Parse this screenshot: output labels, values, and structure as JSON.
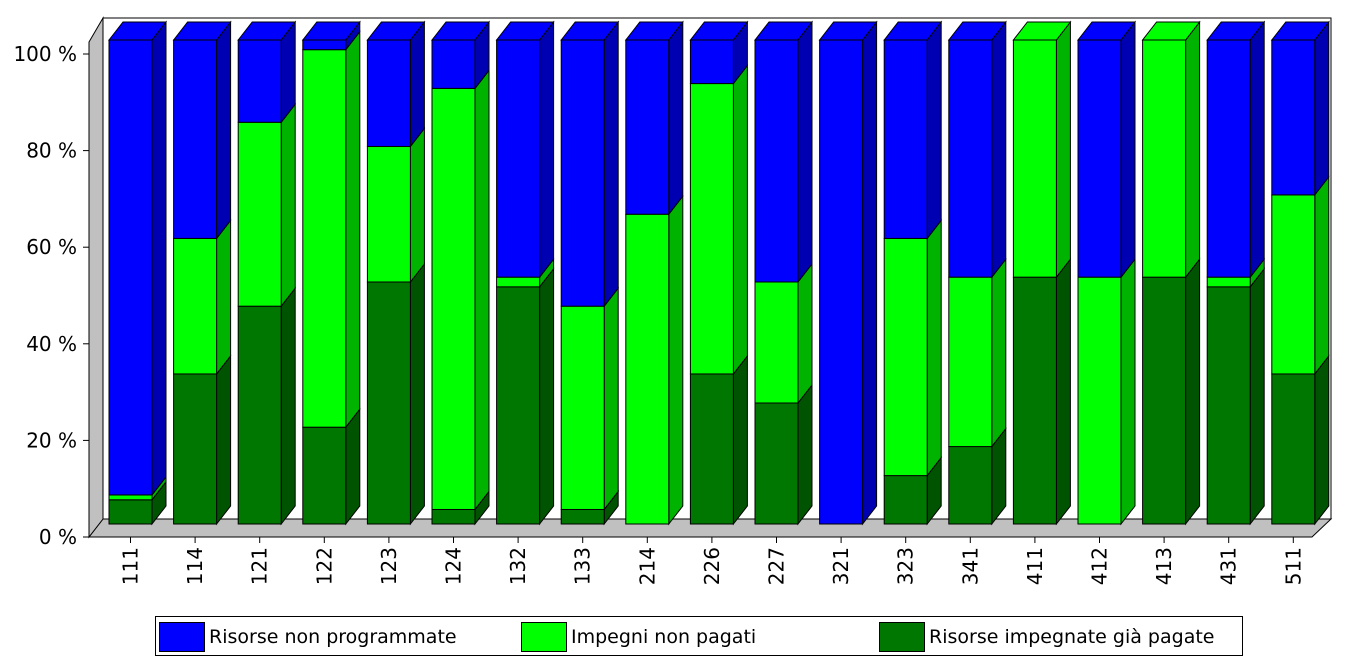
{
  "chart_data": {
    "type": "bar",
    "stacked": true,
    "percent_stacked": true,
    "three_d": true,
    "categories": [
      "111",
      "114",
      "121",
      "122",
      "123",
      "124",
      "132",
      "133",
      "214",
      "226",
      "227",
      "321",
      "323",
      "341",
      "411",
      "412",
      "413",
      "431",
      "511"
    ],
    "series": [
      {
        "name": "Risorse impegnate già pagate",
        "color": "#007700",
        "values": [
          5,
          31,
          45,
          20,
          50,
          3,
          49,
          3,
          0,
          31,
          25,
          0,
          10,
          16,
          51,
          0,
          51,
          49,
          31
        ]
      },
      {
        "name": "Impegni non pagati",
        "color": "#00ff00",
        "values": [
          1,
          28,
          38,
          78,
          28,
          87,
          2,
          42,
          64,
          60,
          25,
          0,
          49,
          35,
          49,
          51,
          49,
          2,
          37
        ]
      },
      {
        "name": "Risorse non programmate",
        "color": "#0000ff",
        "values": [
          94,
          41,
          17,
          2,
          22,
          10,
          49,
          55,
          36,
          9,
          50,
          100,
          41,
          49,
          0,
          49,
          0,
          49,
          32
        ]
      }
    ],
    "y_ticks": [
      "0 %",
      "20 %",
      "40 %",
      "60 %",
      "80 %",
      "100 %"
    ],
    "ylim": [
      0,
      100
    ],
    "grid": false,
    "legend_position": "bottom",
    "legend_order": [
      "Risorse non programmate",
      "Impegni non pagati",
      "Risorse impegnate già pagate"
    ]
  }
}
